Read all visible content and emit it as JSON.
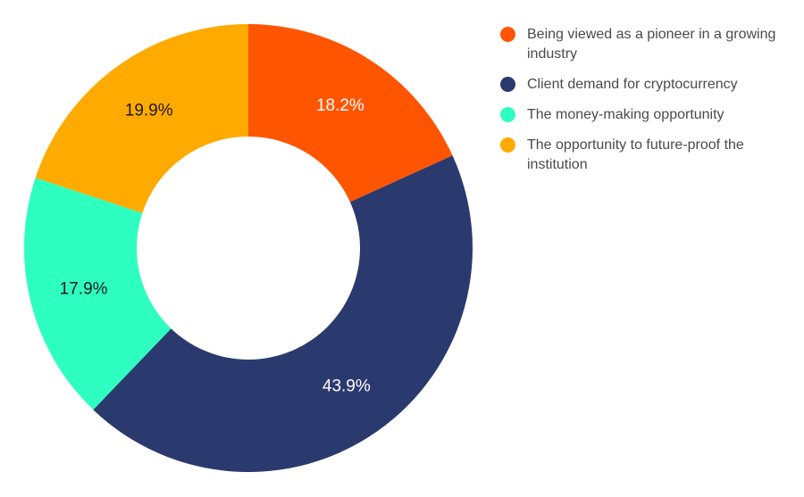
{
  "chart_data": {
    "type": "pie",
    "variant": "donut",
    "legend_position": "right",
    "slices": [
      {
        "label": "Being viewed as a pioneer in a growing industry",
        "value": 18.2,
        "display": "18.2%",
        "color": "#ff5500",
        "label_color": "#ffffff"
      },
      {
        "label": "Client demand for cryptocurrency",
        "value": 43.9,
        "display": "43.9%",
        "color": "#2b3a6e",
        "label_color": "#ffffff"
      },
      {
        "label": "The money-making opportunity",
        "value": 17.9,
        "display": "17.9%",
        "color": "#2effc0",
        "label_color": "#1a1a1a"
      },
      {
        "label": "The opportunity to future-proof the institution",
        "value": 19.9,
        "display": "19.9%",
        "color": "#ffaa00",
        "label_color": "#1a1a1a"
      }
    ]
  }
}
